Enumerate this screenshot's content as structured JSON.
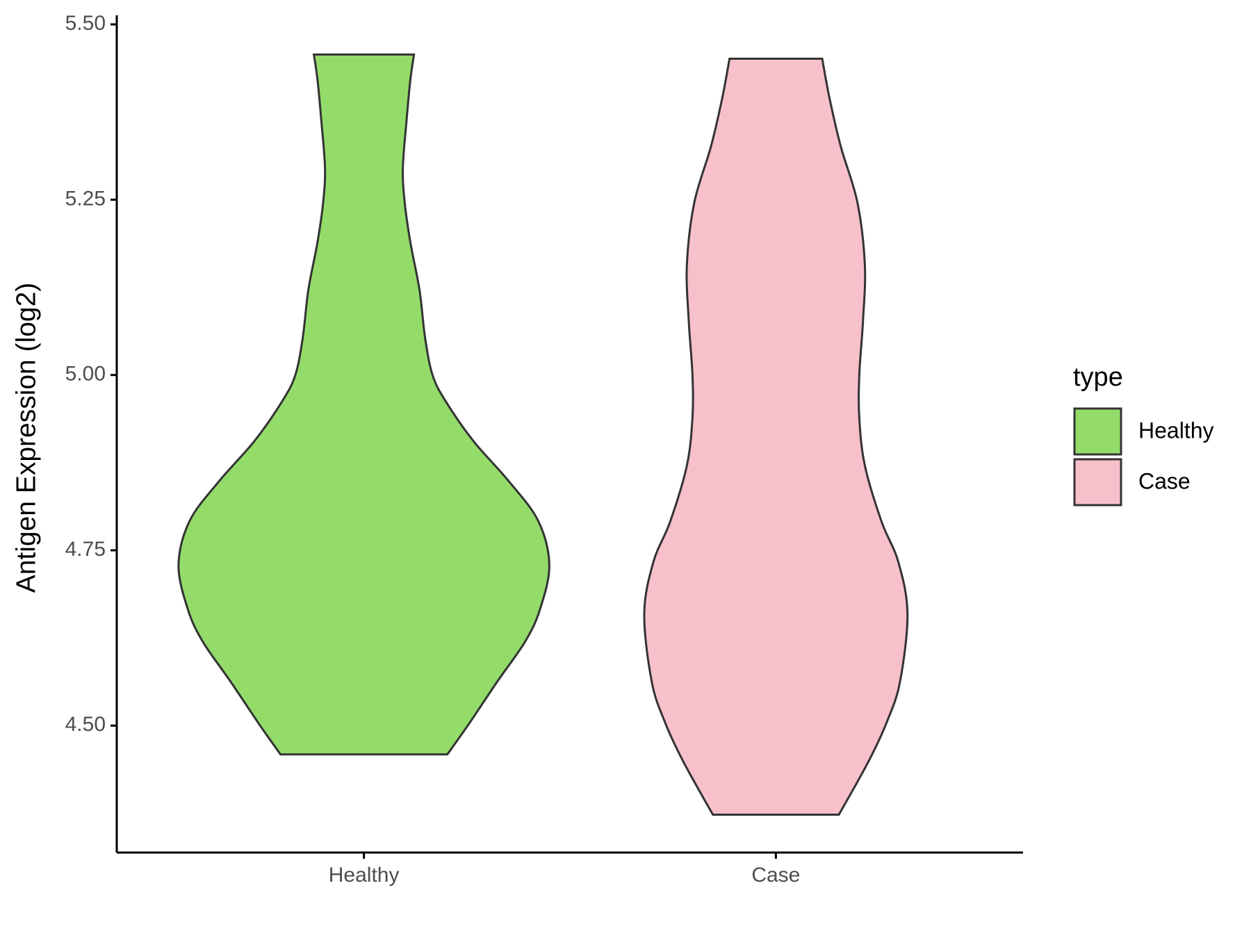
{
  "chart_data": {
    "type": "violin",
    "y_label": "Antigen Expression (log2)",
    "categories": [
      "Healthy",
      "Case"
    ],
    "ylim": [
      4.319,
      5.509
    ],
    "yticks": [
      {
        "value": 4.5,
        "label": "4.50"
      },
      4.75,
      {
        "value": 5,
        "label": "5.00"
      },
      5.25,
      {
        "value": 5.5,
        "label": "5.50"
      }
    ],
    "legend_title": "type",
    "legend_position": "right",
    "series": [
      {
        "name": "Healthy",
        "color": "#93dc6a",
        "y": [
          4.459,
          4.5,
          4.563,
          4.62,
          4.666,
          4.729,
          4.792,
          4.849,
          4.906,
          4.963,
          5.0,
          5.053,
          5.121,
          5.19,
          5.246,
          5.295,
          5.363,
          5.42,
          5.457
        ],
        "density": [
          0.45,
          0.56,
          0.72,
          0.87,
          0.95,
          1,
          0.94,
          0.78,
          0.59,
          0.44,
          0.37,
          0.33,
          0.3,
          0.25,
          0.22,
          0.21,
          0.23,
          0.25,
          0.27
        ]
      },
      {
        "name": "Case",
        "color": "#f7c0cb",
        "y": [
          4.373,
          4.449,
          4.506,
          4.563,
          4.66,
          4.734,
          4.791,
          4.871,
          4.939,
          5.0,
          5.077,
          5.157,
          5.246,
          5.326,
          5.394,
          5.451
        ],
        "density": [
          0.34,
          0.5,
          0.6,
          0.67,
          0.71,
          0.66,
          0.57,
          0.48,
          0.45,
          0.45,
          0.47,
          0.48,
          0.44,
          0.35,
          0.29,
          0.25
        ]
      }
    ]
  }
}
